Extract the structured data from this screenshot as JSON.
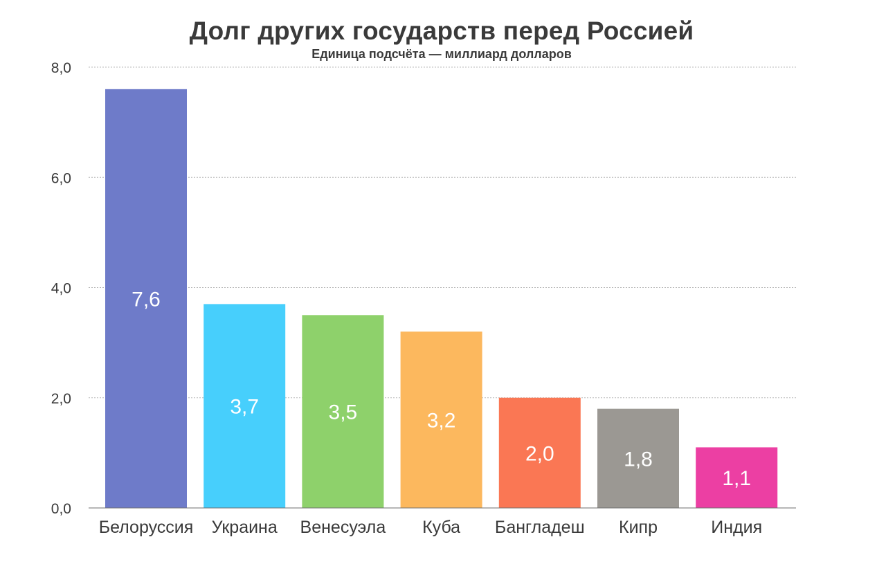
{
  "chart_data": {
    "type": "bar",
    "title": "Долг других государств перед Россией",
    "subtitle": "Единица подсчёта — миллиард долларов",
    "xlabel": "",
    "ylabel": "",
    "ylim": [
      0,
      8
    ],
    "yticks": [
      "0,0",
      "2,0",
      "4,0",
      "6,0",
      "8,0"
    ],
    "ytick_values": [
      0,
      2,
      4,
      6,
      8
    ],
    "grid": true,
    "legend": "none",
    "categories": [
      "Белоруссия",
      "Украина",
      "Венесуэла",
      "Куба",
      "Бангладеш",
      "Кипр",
      "Индия"
    ],
    "values": [
      7.6,
      3.7,
      3.5,
      3.2,
      2.0,
      1.8,
      1.1
    ],
    "value_labels": [
      "7,6",
      "3,7",
      "3,5",
      "3,2",
      "2,0",
      "1,8",
      "1,1"
    ],
    "colors": [
      "#6e7bc9",
      "#47cffc",
      "#8ed16b",
      "#fcb85e",
      "#fa7754",
      "#9b9893",
      "#ec3fa3"
    ],
    "value_label_color": "#ffffff",
    "text_color": "#3a3a3a"
  }
}
